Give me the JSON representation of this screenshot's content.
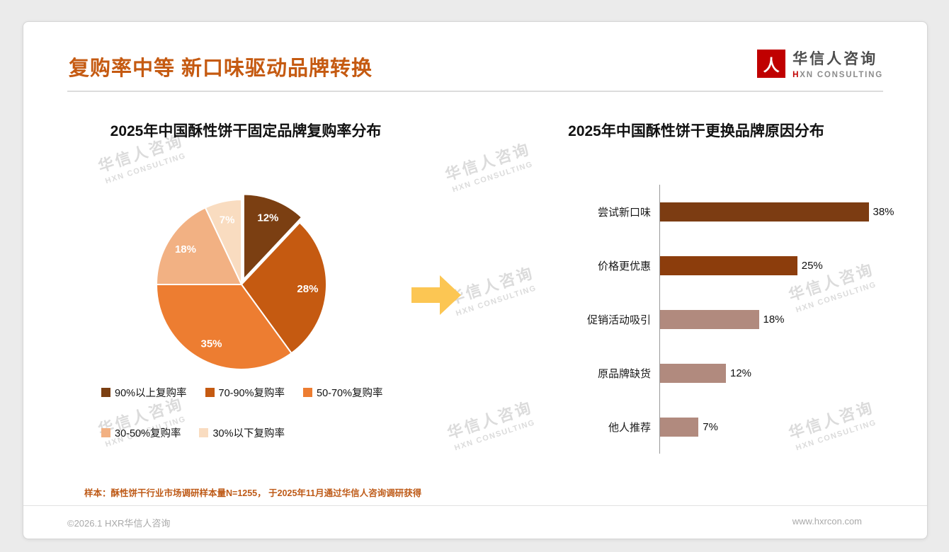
{
  "header": {
    "title": "复购率中等 新口味驱动品牌转换",
    "title_color": "#C55A11",
    "logo": {
      "mark": "人",
      "mark_color": "#C00000",
      "name_cn": "华信人咨询",
      "en_first": "H",
      "en_rest": "XN CONSULTING"
    }
  },
  "watermark": {
    "line1": "华信人咨询",
    "line2": "HXN CONSULTING"
  },
  "arrow_color": "#FCC653",
  "chart_data": [
    {
      "type": "pie",
      "title": "2025年中国酥性饼干固定品牌复购率分布",
      "labels": [
        "90%以上复购率",
        "70-90%复购率",
        "50-70%复购率",
        "30-50%复购率",
        "30%以下复购率"
      ],
      "values": [
        12,
        28,
        35,
        18,
        7
      ],
      "data_labels": [
        "12%",
        "28%",
        "35%",
        "18%",
        "7%"
      ],
      "colors": [
        "#7B3F12",
        "#C55A11",
        "#ED7D31",
        "#F2B183",
        "#F9DCC0"
      ],
      "start_angle_deg": 0,
      "direction": "clockwise",
      "legend_position": "bottom"
    },
    {
      "type": "bar",
      "orientation": "horizontal",
      "title": "2025年中国酥性饼干更换品牌原因分布",
      "categories": [
        "尝试新口味",
        "价格更优惠",
        "促销活动吸引",
        "原品牌缺货",
        "他人推荐"
      ],
      "values": [
        38,
        25,
        18,
        12,
        7
      ],
      "data_labels": [
        "38%",
        "25%",
        "18%",
        "12%",
        "7%"
      ],
      "colors": [
        "#7C3C12",
        "#8C3D0C",
        "#B18A7E",
        "#B18A7E",
        "#B18A7E"
      ],
      "xlim": [
        0,
        40
      ],
      "grid": false
    }
  ],
  "footnote": "样本：酥性饼干行业市场调研样本量N=1255， 于2025年11月通过华信人咨询调研获得",
  "footer": {
    "copyright": "©2026.1 HXR华信人咨询",
    "website": "www.hxrcon.com"
  }
}
